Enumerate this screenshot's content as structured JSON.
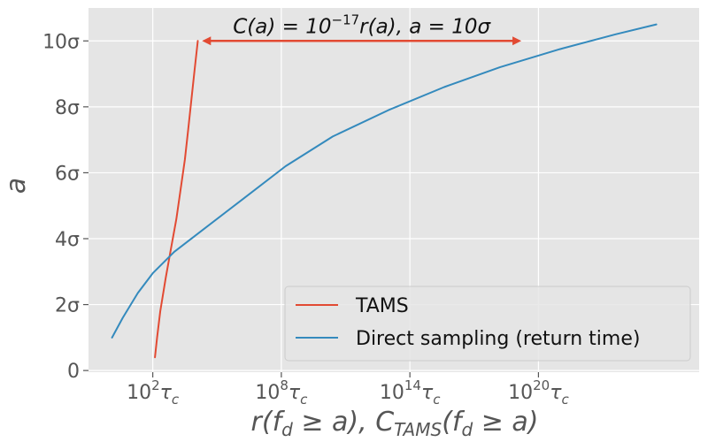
{
  "chart_data": {
    "type": "line",
    "xlabel": "r(f_d ≥ a), C_TAMS(f_d ≥ a)",
    "ylabel": "a",
    "x_scale": "log10",
    "xlim_log10": [
      -1,
      27.5
    ],
    "ylim": [
      -0.05,
      11
    ],
    "x_ticks": [
      {
        "log10": 2,
        "label_base": "10",
        "label_exp": "2",
        "label_sub": "τ",
        "label_subsub": "c"
      },
      {
        "log10": 8,
        "label_base": "10",
        "label_exp": "8",
        "label_sub": "τ",
        "label_subsub": "c"
      },
      {
        "log10": 14,
        "label_base": "10",
        "label_exp": "14",
        "label_sub": "τ",
        "label_subsub": "c"
      },
      {
        "log10": 20,
        "label_base": "10",
        "label_exp": "20",
        "label_sub": "τ",
        "label_subsub": "c"
      }
    ],
    "y_ticks": [
      {
        "value": 0,
        "label": "0"
      },
      {
        "value": 2,
        "label": "2σ"
      },
      {
        "value": 4,
        "label": "4σ"
      },
      {
        "value": 6,
        "label": "6σ"
      },
      {
        "value": 8,
        "label": "8σ"
      },
      {
        "value": 10,
        "label": "10σ"
      }
    ],
    "grid": true,
    "legend_position": "lower-right",
    "series": [
      {
        "name": "TAMS",
        "color": "#e24a33",
        "points": [
          {
            "log10x": 2.1,
            "y": 0.4
          },
          {
            "log10x": 2.2,
            "y": 1.0
          },
          {
            "log10x": 2.35,
            "y": 1.8
          },
          {
            "log10x": 2.6,
            "y": 2.8
          },
          {
            "log10x": 2.85,
            "y": 3.7
          },
          {
            "log10x": 3.1,
            "y": 4.6
          },
          {
            "log10x": 3.3,
            "y": 5.5
          },
          {
            "log10x": 3.5,
            "y": 6.4
          },
          {
            "log10x": 3.65,
            "y": 7.3
          },
          {
            "log10x": 3.8,
            "y": 8.2
          },
          {
            "log10x": 3.95,
            "y": 9.1
          },
          {
            "log10x": 4.1,
            "y": 10.0
          }
        ]
      },
      {
        "name": "Direct sampling (return time)",
        "color": "#348abd",
        "points": [
          {
            "log10x": 0.1,
            "y": 1.0
          },
          {
            "log10x": 0.6,
            "y": 1.6
          },
          {
            "log10x": 1.3,
            "y": 2.35
          },
          {
            "log10x": 2.0,
            "y": 2.95
          },
          {
            "log10x": 3.0,
            "y": 3.6
          },
          {
            "log10x": 4.4,
            "y": 4.3
          },
          {
            "log10x": 6.2,
            "y": 5.2
          },
          {
            "log10x": 8.2,
            "y": 6.2
          },
          {
            "log10x": 10.4,
            "y": 7.1
          },
          {
            "log10x": 13.0,
            "y": 7.9
          },
          {
            "log10x": 15.6,
            "y": 8.6
          },
          {
            "log10x": 18.2,
            "y": 9.2
          },
          {
            "log10x": 21.0,
            "y": 9.75
          },
          {
            "log10x": 23.6,
            "y": 10.2
          },
          {
            "log10x": 25.5,
            "y": 10.5
          }
        ]
      }
    ],
    "annotations": [
      {
        "kind": "double-arrow",
        "color": "#e24a33",
        "from": {
          "log10x": 4.3,
          "y": 10.0
        },
        "to": {
          "log10x": 19.2,
          "y": 10.0
        },
        "text": "C(a) = 10^{-17} r(a), a = 10σ",
        "text_parts": {
          "lhs": "C(a) = 10",
          "exp": "−17",
          "rhs": "r(a), a = 10σ"
        }
      }
    ],
    "xlabel_parts": {
      "p1": "r(f",
      "p1_sub": "d",
      "p2": " ≥ a), C",
      "p2_sub": "TAMS",
      "p3": "(f",
      "p3_sub": "d",
      "p4": " ≥ a)"
    }
  }
}
